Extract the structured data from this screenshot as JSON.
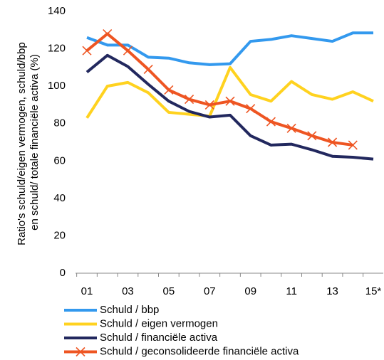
{
  "chart_data": {
    "type": "line",
    "y_label": "Ratio's schuld/eigen vermogen, schuld/bbp en schuld/ totale financiële activa (%)",
    "categories": [
      "01",
      null,
      "03",
      null,
      "05",
      null,
      "07",
      null,
      "09",
      null,
      "11",
      null,
      "13",
      null,
      "15*"
    ],
    "ylim": [
      0,
      140
    ],
    "yticks": [
      0,
      20,
      40,
      60,
      80,
      100,
      120,
      140
    ],
    "series": [
      {
        "name": "Schuld / bbp",
        "color": "#3399ee",
        "values": [
          126,
          122,
          122,
          115.5,
          115,
          112.5,
          111.5,
          112,
          124,
          125,
          127,
          125.5,
          124,
          128.5,
          128.5
        ]
      },
      {
        "name": "Schuld / eigen vermogen",
        "color": "#ffd21f",
        "values": [
          83,
          100,
          102,
          96.5,
          86,
          85,
          84,
          110,
          95.5,
          92,
          102.5,
          95.5,
          93,
          97,
          92
        ]
      },
      {
        "name": "Schuld / financiële activa",
        "color": "#22285e",
        "values": [
          107.5,
          116.5,
          110.5,
          101,
          92,
          86.5,
          83.5,
          84.5,
          73.5,
          68.5,
          69,
          66,
          62.5,
          62,
          61
        ]
      },
      {
        "name": "Schuld / geconsolideerde financiële activa",
        "color": "#ee5522",
        "marker": "x",
        "values": [
          119,
          128,
          119,
          109,
          98,
          93,
          90,
          92,
          88,
          81,
          77.5,
          73.5,
          70,
          68.5,
          null
        ]
      }
    ]
  }
}
